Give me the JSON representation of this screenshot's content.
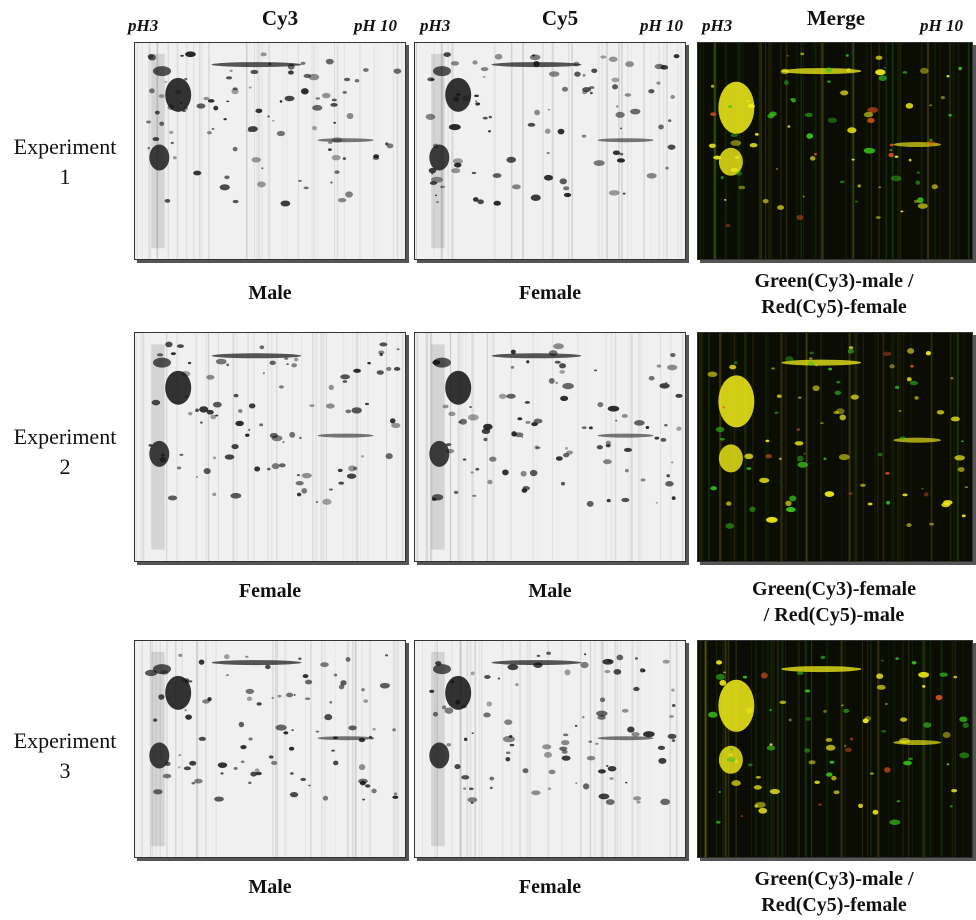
{
  "columns": {
    "cy3": "Cy3",
    "cy5": "Cy5",
    "merge": "Merge"
  },
  "ph_labels": {
    "low": "pH3",
    "high": "pH 10"
  },
  "experiments": [
    {
      "label_line1": "Experiment",
      "label_line2": "1",
      "cy3_caption": "Male",
      "cy5_caption": "Female",
      "merge_caption_line1": "Green(Cy3)-male /",
      "merge_caption_line2": "Red(Cy5)-female"
    },
    {
      "label_line1": "Experiment",
      "label_line2": "2",
      "cy3_caption": "Female",
      "cy5_caption": "Male",
      "merge_caption_line1": "Green(Cy3)-female",
      "merge_caption_line2": "/ Red(Cy5)-male"
    },
    {
      "label_line1": "Experiment",
      "label_line2": "3",
      "cy3_caption": "Male",
      "cy5_caption": "Female",
      "merge_caption_line1": "Green(Cy3)-male /",
      "merge_caption_line2": "Red(Cy5)-female"
    }
  ],
  "colors": {
    "gel_background": "#f0f0f0",
    "gel_spot": "#111111",
    "merge_background": "#0b0c04",
    "merge_yellow": "#f4f01a",
    "merge_green": "#38c41c",
    "merge_red": "#e0521a"
  }
}
